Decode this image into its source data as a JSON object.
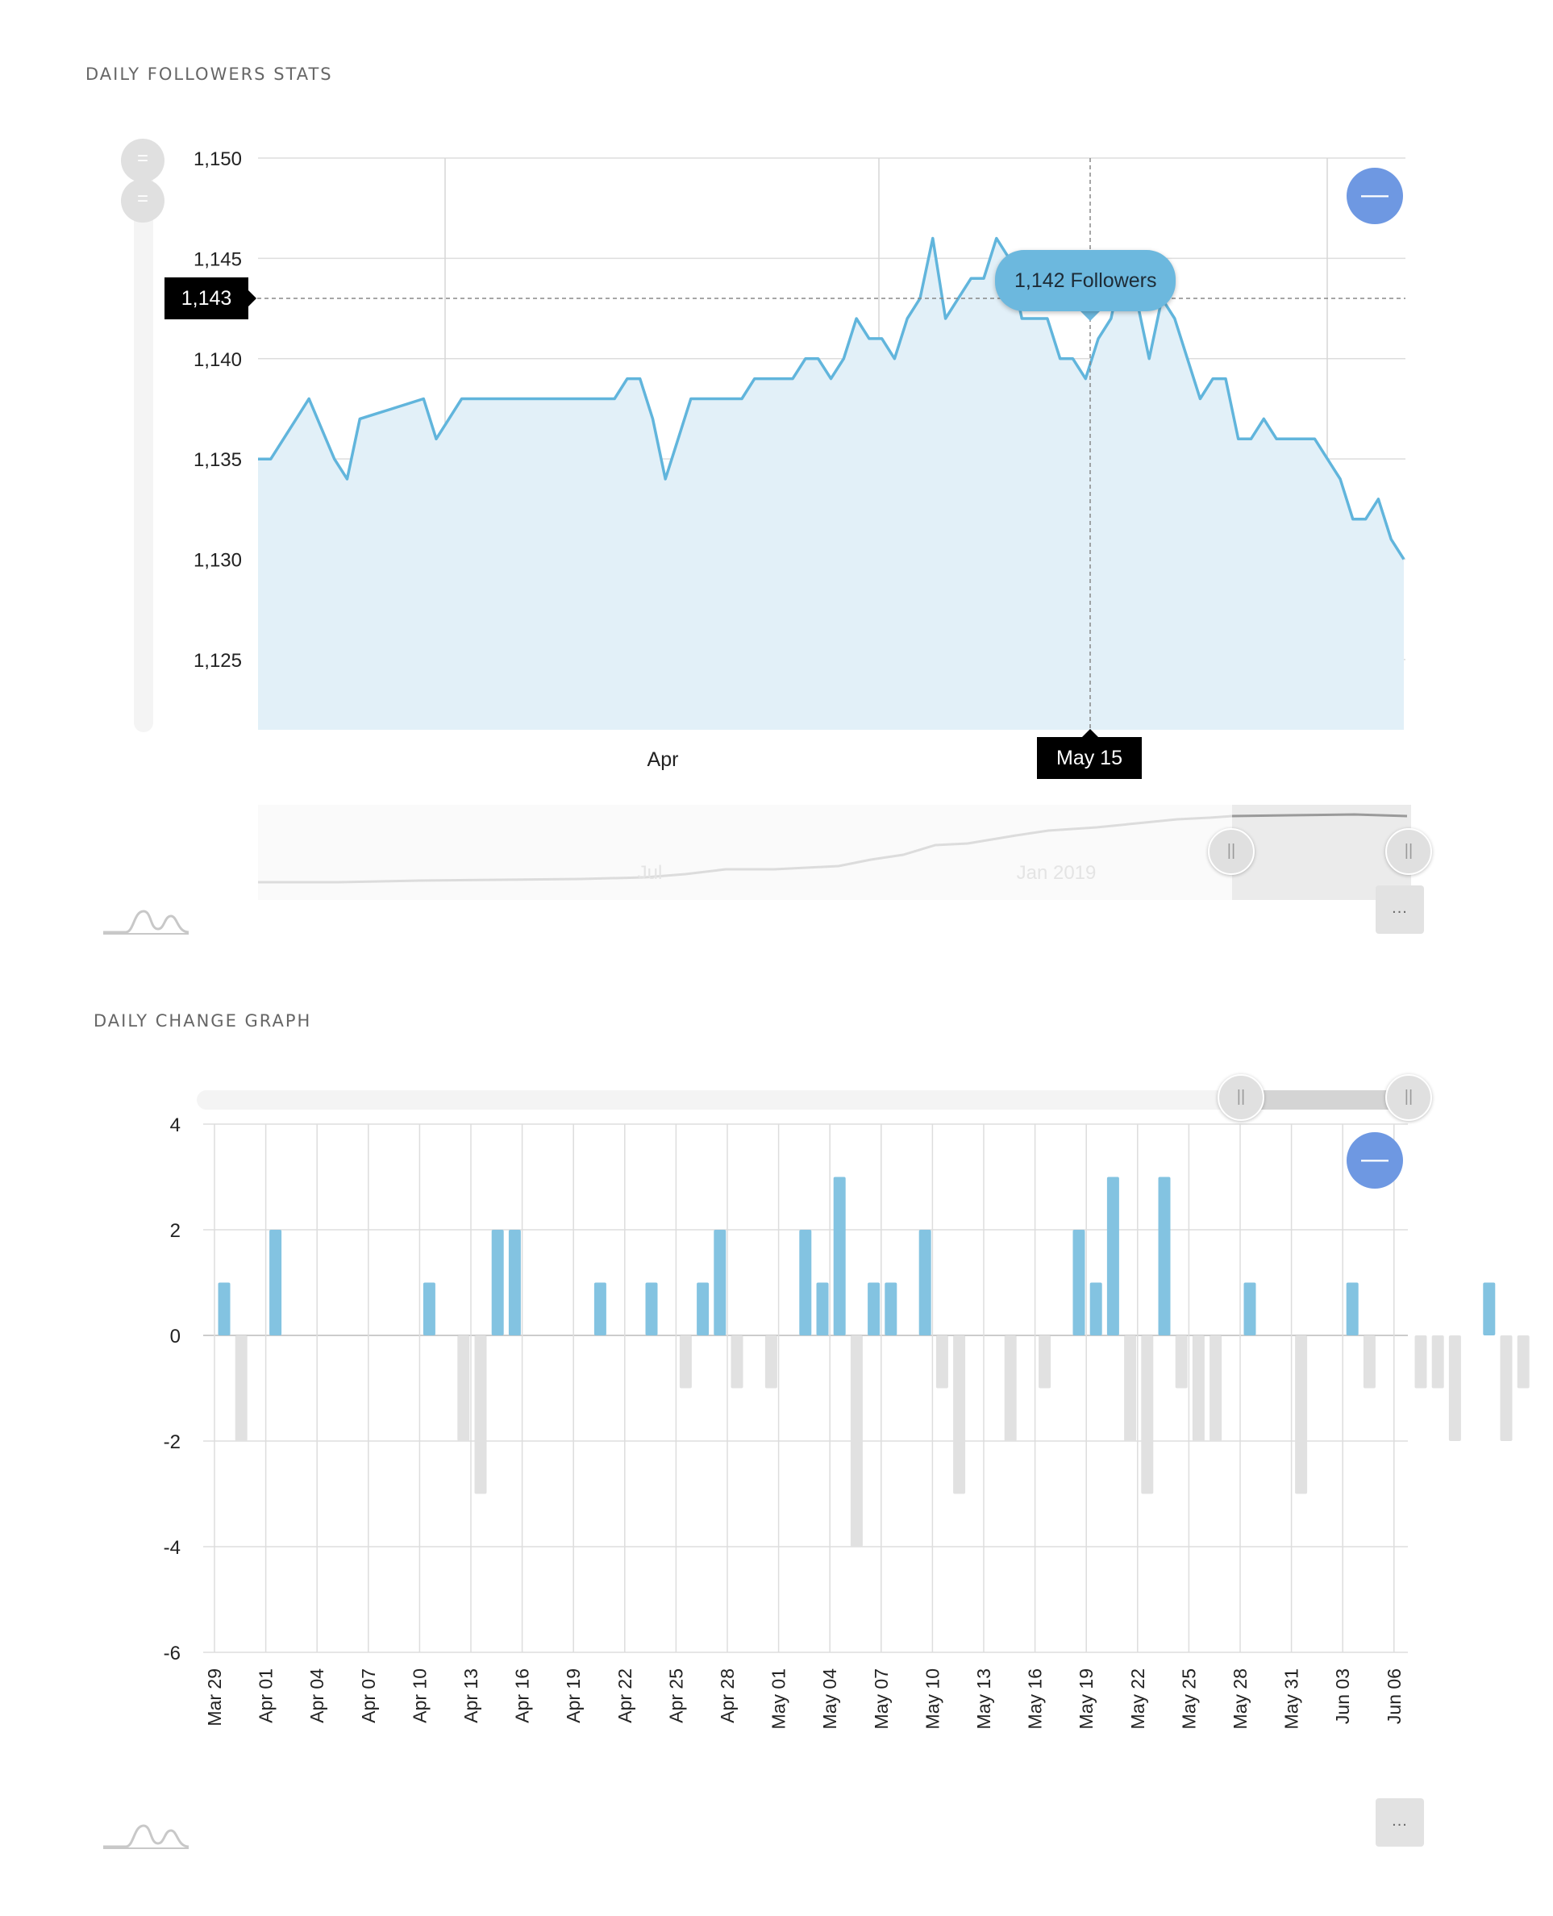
{
  "colors": {
    "line": "#61b5dc",
    "area": "#e2f0f8",
    "bar_positive": "#83c3e1",
    "bar_negative": "#e1e1e1",
    "grid": "#dddddd",
    "accent_button": "#6e98e2"
  },
  "followers_section": {
    "title": "DAILY FOLLOWERS STATS",
    "tooltip": "1,142 Followers",
    "cursor_y_label": "1,143",
    "cursor_x_label": "May 15",
    "collapse_icon": "minus-icon",
    "more_icon": "ellipsis-icon",
    "logo_icon": "chart-logo-icon",
    "navigator_labels": [
      "Jul",
      "Jan 2019"
    ]
  },
  "change_section": {
    "title": "DAILY CHANGE GRAPH",
    "collapse_icon": "minus-icon",
    "more_icon": "ellipsis-icon",
    "logo_icon": "chart-logo-icon"
  },
  "chart_data": [
    {
      "type": "area",
      "title": "DAILY FOLLOWERS STATS",
      "x_labels": [
        "Apr"
      ],
      "ylim": [
        1121.5,
        1150
      ],
      "y_ticks": [
        "1,125",
        "1,130",
        "1,135",
        "1,140",
        "1,145",
        "1,150"
      ],
      "y_tick_values": [
        1125,
        1130,
        1135,
        1140,
        1145,
        1150
      ],
      "grid": true,
      "series": [
        {
          "values": [
            1135,
            1135,
            1136,
            1137,
            1138,
            1136.5,
            1135,
            1134,
            1137,
            1137.2,
            1137.4,
            1137.6,
            1137.8,
            1138,
            1136,
            1137,
            1138,
            1138,
            1138,
            1138,
            1138,
            1138,
            1138,
            1138,
            1138,
            1138,
            1138,
            1138,
            1138,
            1139,
            1139,
            1137,
            1134,
            1136,
            1138,
            1138,
            1138,
            1138,
            1138,
            1139,
            1139,
            1139,
            1139,
            1140,
            1140,
            1139,
            1140,
            1142,
            1141,
            1141,
            1140,
            1142,
            1143,
            1146,
            1142,
            1143,
            1144,
            1144,
            1146,
            1145,
            1142,
            1142,
            1142,
            1140,
            1140,
            1139,
            1141,
            1142,
            1145,
            1143,
            1140,
            1143,
            1142,
            1140,
            1138,
            1139,
            1139,
            1136,
            1136,
            1137,
            1136,
            1136,
            1136,
            1136,
            1135,
            1134,
            1132,
            1132,
            1133,
            1131,
            1130
          ]
        }
      ]
    },
    {
      "type": "bar",
      "title": "DAILY CHANGE GRAPH",
      "ylim": [
        -6,
        4
      ],
      "y_ticks": [
        "4",
        "2",
        "0",
        "-2",
        "-4",
        "-6"
      ],
      "y_tick_values": [
        4,
        2,
        0,
        -2,
        -4,
        -6
      ],
      "grid": true,
      "tick_labels": [
        "Mar 29",
        "Apr 01",
        "Apr 04",
        "Apr 07",
        "Apr 10",
        "Apr 13",
        "Apr 16",
        "Apr 19",
        "Apr 22",
        "Apr 25",
        "Apr 28",
        "May 01",
        "May 04",
        "May 07",
        "May 10",
        "May 13",
        "May 16",
        "May 19",
        "May 22",
        "May 25",
        "May 28",
        "May 31",
        "Jun 03",
        "Jun 06"
      ],
      "values": [
        1,
        -2,
        0,
        2,
        0,
        0,
        0,
        0,
        0,
        0,
        0,
        0,
        1,
        0,
        -2,
        -3,
        2,
        2,
        0,
        0,
        0,
        0,
        1,
        0,
        0,
        1,
        0,
        -1,
        1,
        2,
        -1,
        0,
        -1,
        0,
        2,
        1,
        3,
        -4,
        1,
        1,
        0,
        2,
        -1,
        -3,
        0,
        0,
        -2,
        0,
        -1,
        0,
        2,
        1,
        3,
        -2,
        -3,
        3,
        -1,
        -2,
        -2,
        0,
        1,
        0,
        0,
        -3,
        0,
        0,
        1,
        -1,
        0,
        0,
        -1,
        -1,
        -2,
        0,
        1,
        -2,
        -1
      ]
    }
  ]
}
